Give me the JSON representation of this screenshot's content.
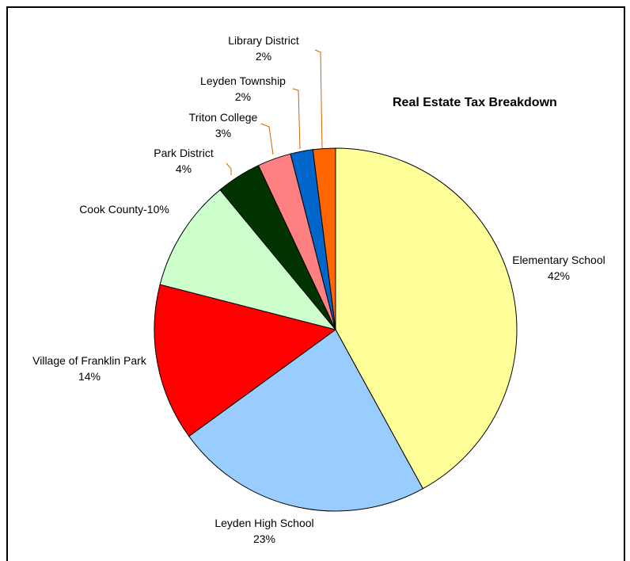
{
  "chart_data": {
    "type": "pie",
    "title": "Real Estate Tax Breakdown",
    "slices": [
      {
        "name": "Elementary School",
        "value": 42,
        "label": "42%",
        "color": "#FFFF99"
      },
      {
        "name": "Leyden High School",
        "value": 23,
        "label": "23%",
        "color": "#99CCFF"
      },
      {
        "name": "Village of Franklin Park",
        "value": 14,
        "label": "14%",
        "color": "#FF0000"
      },
      {
        "name": "Cook County",
        "value": 10,
        "label": "Cook County-10%",
        "color": "#CCFFCC"
      },
      {
        "name": "Park District",
        "value": 4,
        "label": "4%",
        "color": "#003300"
      },
      {
        "name": "Triton College",
        "value": 3,
        "label": "3%",
        "color": "#FF8080"
      },
      {
        "name": "Leyden Township",
        "value": 2,
        "label": "2%",
        "color": "#0066CC"
      },
      {
        "name": "Library District",
        "value": 2,
        "label": "2%",
        "color": "#FF6600"
      }
    ],
    "leader_line_color": "#CC6600"
  }
}
